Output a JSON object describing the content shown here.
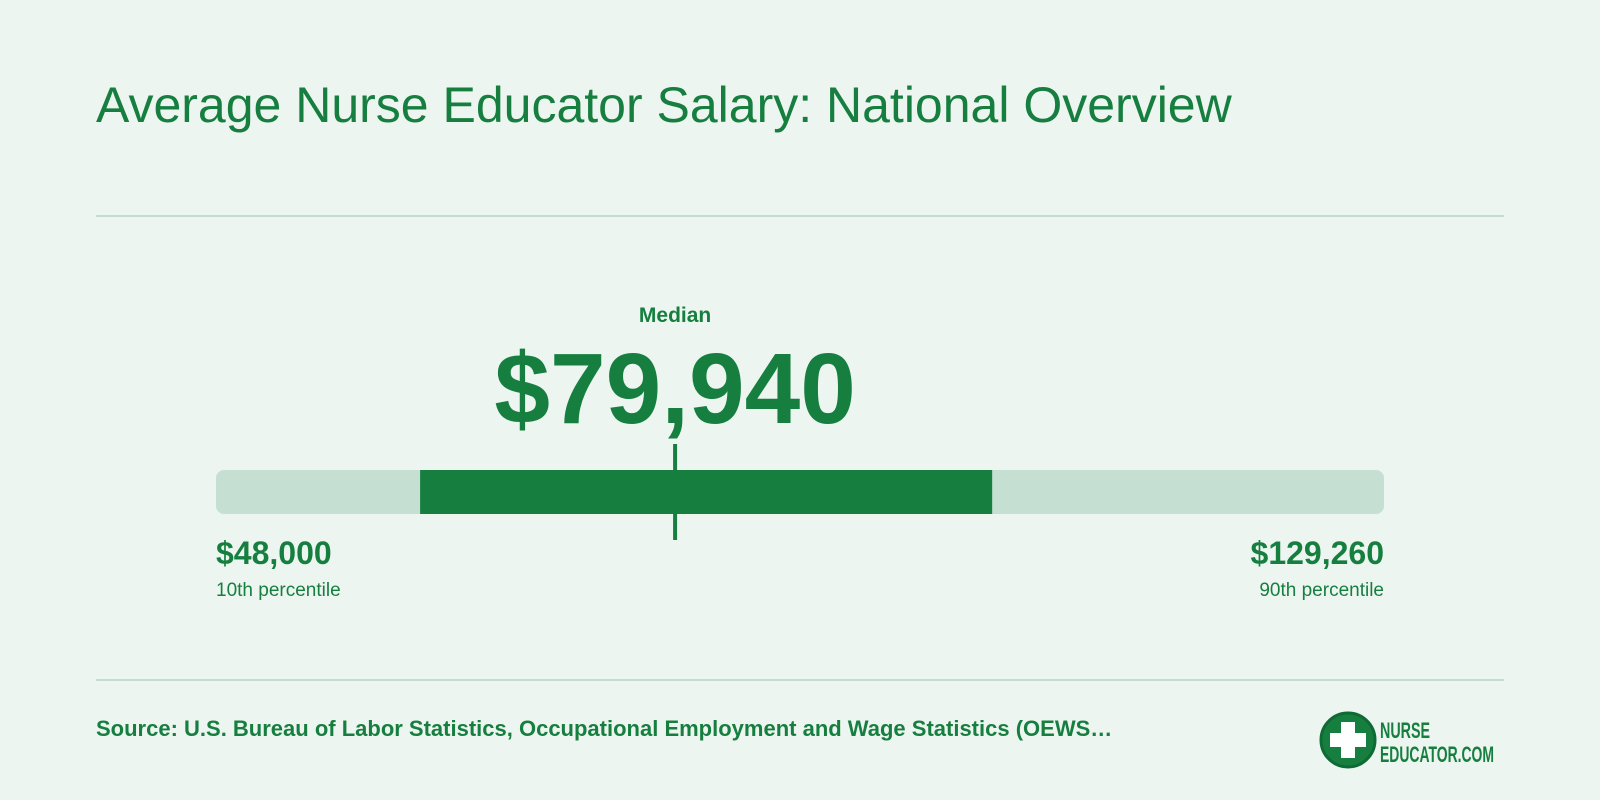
{
  "chart_data": {
    "type": "range",
    "title": "Average Nurse Educator Salary: National Overview",
    "median": {
      "label": "Median",
      "value": 79940,
      "value_label": "$79,940"
    },
    "low": {
      "value": 48000,
      "value_label": "$48,000",
      "label": "10th percentile"
    },
    "high": {
      "value": 129260,
      "value_label": "$129,260",
      "label": "90th percentile"
    },
    "band": [
      62200,
      102000
    ],
    "color": "#167f40",
    "track_color": "#c5e0d2",
    "source": "Source: U.S. Bureau of Labor Statistics, Occupational Employment and Wage Statistics (OEWS…",
    "logo": [
      "NURSE",
      "EDUCATOR.COM"
    ]
  }
}
